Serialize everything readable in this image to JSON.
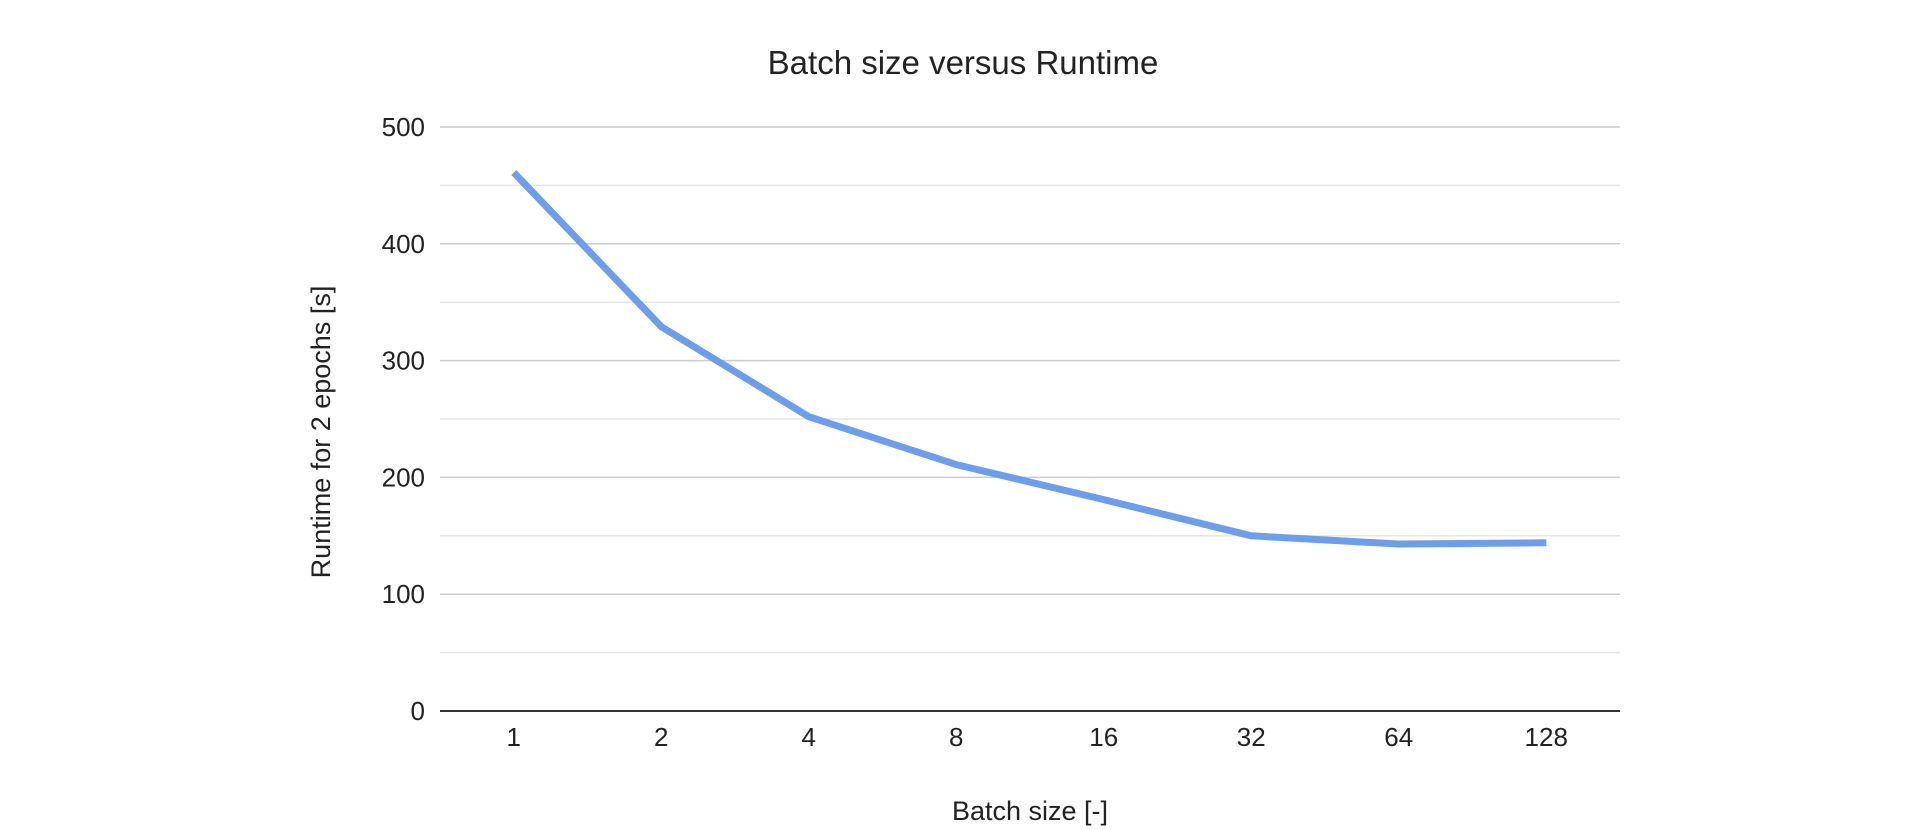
{
  "chart_data": {
    "type": "line",
    "title": "Batch size versus Runtime",
    "xlabel": "Batch size [-]",
    "ylabel": "Runtime for 2 epochs [s]",
    "categories": [
      "1",
      "2",
      "4",
      "8",
      "16",
      "32",
      "64",
      "128"
    ],
    "series": [
      {
        "values": [
          461,
          329,
          252,
          211,
          181,
          150,
          143,
          144
        ],
        "color": "#6d9eeb"
      }
    ],
    "ylim": [
      0,
      500
    ],
    "yticks": [
      0,
      100,
      200,
      300,
      400,
      500
    ],
    "yticks_labels": [
      "0",
      "100",
      "200",
      "300",
      "400",
      "500"
    ],
    "minor_gridlines": [
      50,
      150,
      250,
      350,
      450
    ],
    "grid": true,
    "legend": "none"
  }
}
